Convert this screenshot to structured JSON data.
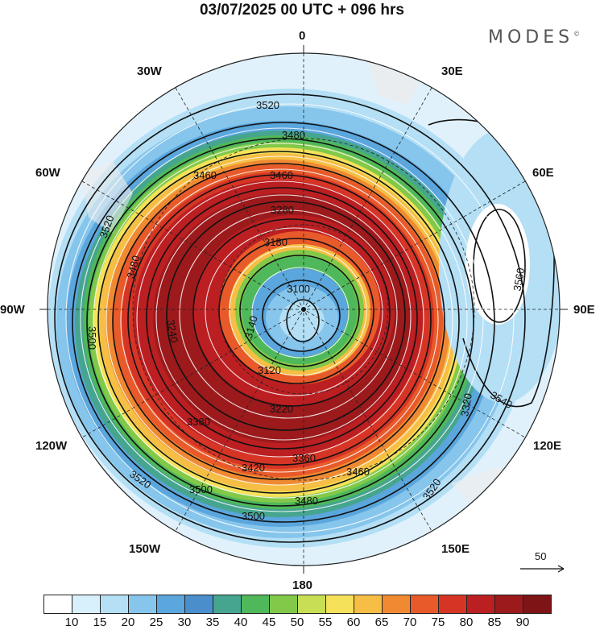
{
  "header": {
    "title": "03/07/2025  00 UTC  + 096 hrs",
    "brand": "MODES",
    "brand_mark": "©"
  },
  "map": {
    "projection": "polar stereographic (south pole)",
    "longitude_labels": {
      "top": "0",
      "top_right": "30E",
      "right_upper": "60E",
      "right": "90E",
      "right_lower": "120E",
      "bottom_right": "150E",
      "bottom": "180",
      "bottom_left": "150W",
      "left_lower": "120W",
      "left": "90W",
      "left_upper": "60W",
      "top_left": "30W"
    },
    "contour_labels": [
      "3520",
      "3480",
      "3460",
      "3460",
      "3280",
      "3180",
      "3100",
      "3140",
      "3120",
      "3220",
      "3420",
      "3360",
      "3460",
      "3500",
      "3480",
      "3520",
      "3520",
      "3500",
      "3480",
      "3520",
      "3540",
      "3560",
      "3500",
      "3320",
      "3240",
      "3380"
    ],
    "vector_reference": "50"
  },
  "colorbar": {
    "labels": [
      "10",
      "15",
      "20",
      "25",
      "30",
      "35",
      "40",
      "45",
      "50",
      "55",
      "60",
      "65",
      "70",
      "75",
      "80",
      "85",
      "90"
    ],
    "colors": [
      "#ffffff",
      "#d8f0fb",
      "#b4dff5",
      "#86c5ec",
      "#5aa6dd",
      "#4a8fcc",
      "#46a58e",
      "#4fb85a",
      "#82c94a",
      "#c7de55",
      "#f5e25a",
      "#f6be44",
      "#f08a32",
      "#e85a2a",
      "#d63526",
      "#bb1f22",
      "#9c1a1c",
      "#7e1416"
    ]
  }
}
